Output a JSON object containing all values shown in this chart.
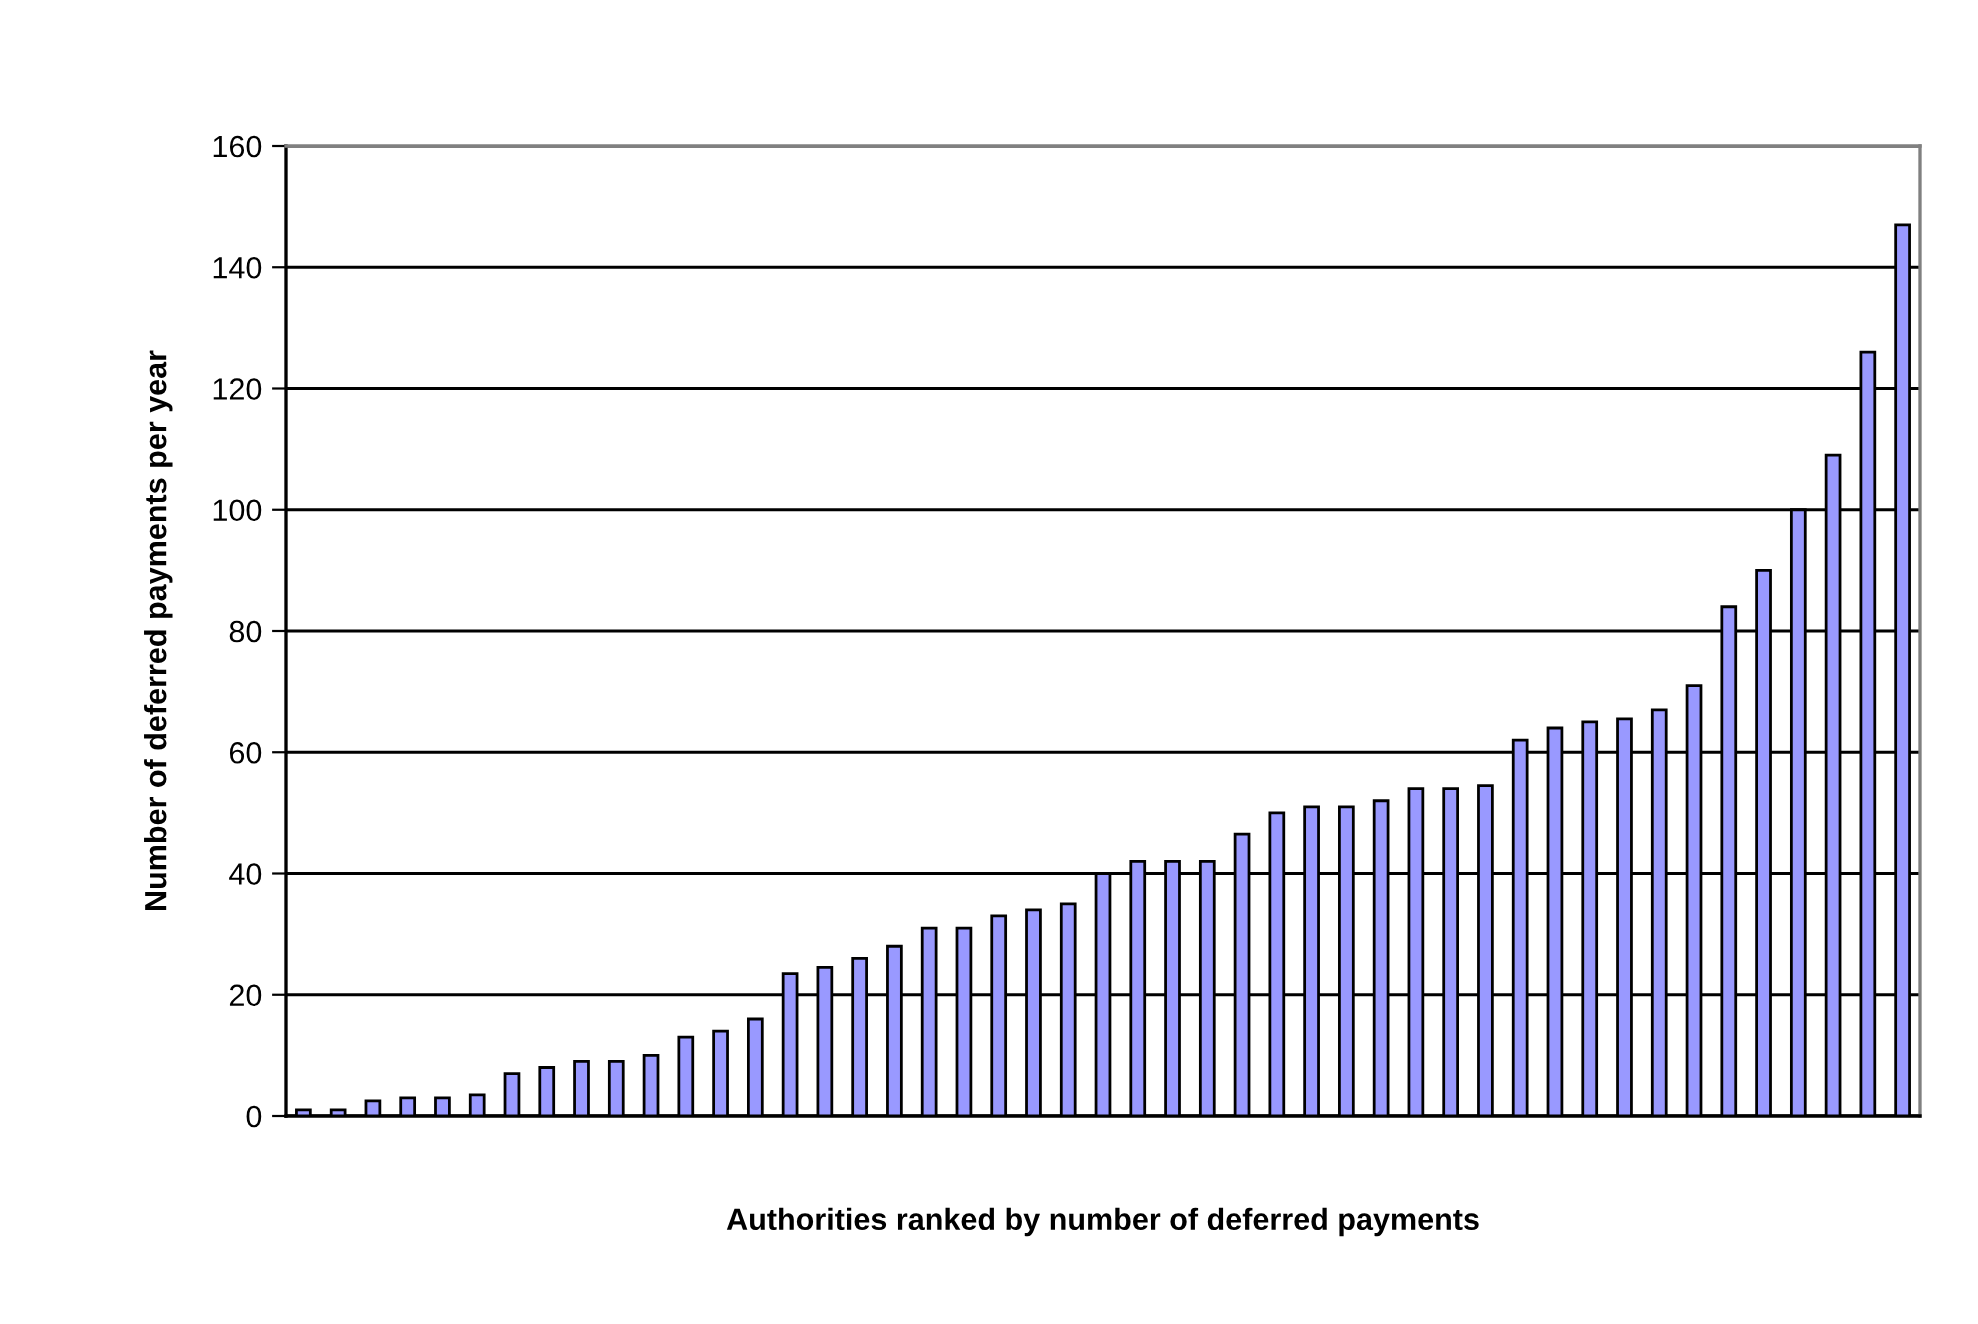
{
  "chart_data": {
    "type": "bar",
    "xlabel": "Authorities ranked by number of deferred payments",
    "ylabel": "Number of deferred payments per year",
    "categories": [
      null,
      null,
      null,
      null,
      null,
      null,
      null,
      null,
      null,
      null,
      null,
      null,
      null,
      null,
      null,
      null,
      null,
      null,
      null,
      null,
      null,
      null,
      null,
      null,
      null,
      null,
      null,
      null,
      null,
      null,
      null,
      null,
      null,
      null,
      null,
      null,
      null,
      null,
      null,
      null,
      null,
      null,
      null,
      null,
      null,
      null,
      null
    ],
    "values": [
      1,
      1,
      2.5,
      3,
      3,
      3.5,
      7,
      8,
      9,
      9,
      10,
      13,
      14,
      16,
      23.5,
      24.5,
      26,
      28,
      31,
      31,
      33,
      34,
      35,
      40,
      42,
      42,
      42,
      46.5,
      50,
      51,
      51,
      52,
      54,
      54,
      54.5,
      62,
      64,
      65,
      65.5,
      67,
      71,
      84,
      90,
      100,
      109,
      126,
      147
    ],
    "color": "#9999ff",
    "ylim": [
      0,
      160
    ],
    "yticks": [
      0,
      20,
      40,
      60,
      80,
      100,
      120,
      140,
      160
    ],
    "grid": "y",
    "tick_labels": "y"
  }
}
